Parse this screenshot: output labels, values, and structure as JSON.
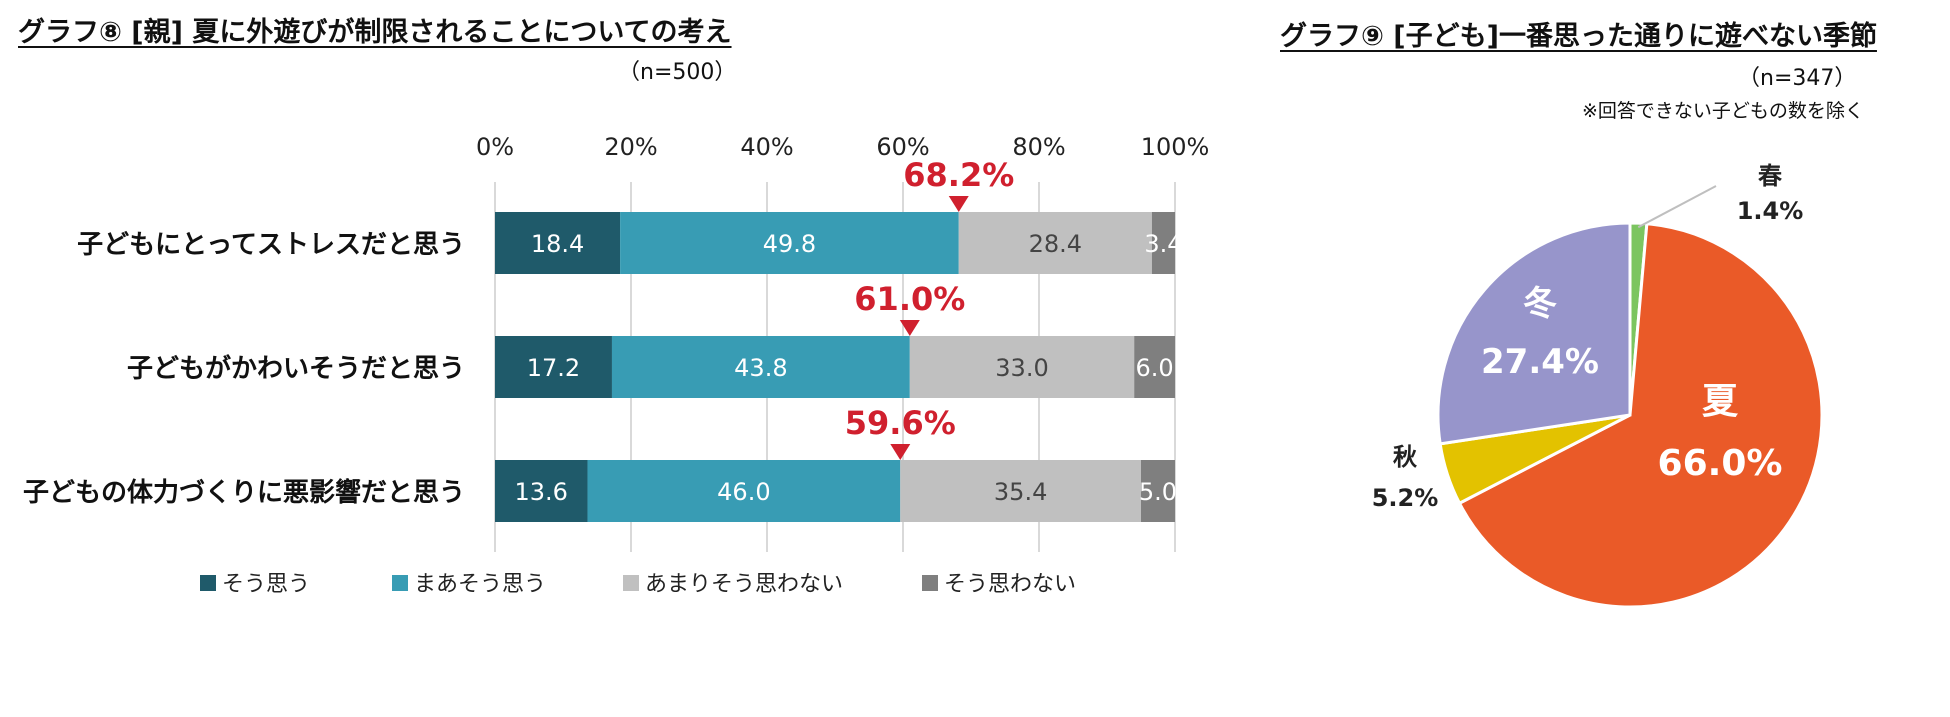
{
  "chart8": {
    "title": "グラフ⑧ [親] 夏に外遊びが制限されることについての考え",
    "sample": "（n=500）"
  },
  "chart9": {
    "title": "グラフ⑨ [子ども]一番思った通りに遊べない季節",
    "sample": "（n=347）",
    "note": "※回答できない子どもの数を除く"
  },
  "chart_data": [
    {
      "type": "bar",
      "orientation": "horizontal",
      "stacked": true,
      "title": "グラフ⑧ [親] 夏に外遊びが制限されることについての考え",
      "categories": [
        "子どもにとってストレスだと思う",
        "子どもがかわいそうだと思う",
        "子どもの体力づくりに悪影響だと思う"
      ],
      "series": [
        {
          "name": "そう思う",
          "color": "#1f5a6a",
          "values": [
            18.4,
            17.2,
            13.6
          ]
        },
        {
          "name": "まあそう思う",
          "color": "#389cb4",
          "values": [
            49.8,
            43.8,
            46.0
          ]
        },
        {
          "name": "あまりそう思わない",
          "color": "#c0c0c0",
          "values": [
            28.4,
            33.0,
            35.4
          ]
        },
        {
          "name": "そう思わない",
          "color": "#7f7f7f",
          "values": [
            3.4,
            6.0,
            5.0
          ]
        }
      ],
      "value_labels": [
        "18.4",
        "49.8",
        "28.4",
        "3.4",
        "17.2",
        "43.8",
        "33.0",
        "6.0",
        "13.6",
        "46.0",
        "35.4",
        "5.0"
      ],
      "annotations": [
        "68.2%",
        "61.0%",
        "59.6%"
      ],
      "annotation_values": [
        68.2,
        61.0,
        59.6
      ],
      "annotation_color": "#d0202e",
      "xlim": [
        0,
        100
      ],
      "ticks": [
        "0%",
        "20%",
        "40%",
        "60%",
        "80%",
        "100%"
      ],
      "legend": "bottom"
    },
    {
      "type": "pie",
      "title": "グラフ⑨ [子ども]一番思った通りに遊べない季節",
      "slices": [
        {
          "label": "春",
          "value": 1.4,
          "text": "1.4%",
          "color": "#7cc560"
        },
        {
          "label": "夏",
          "value": 66.0,
          "text": "66.0%",
          "color": "#ea5a28"
        },
        {
          "label": "秋",
          "value": 5.2,
          "text": "5.2%",
          "color": "#e3c200"
        },
        {
          "label": "冬",
          "value": 27.4,
          "text": "27.4%",
          "color": "#9795cb"
        }
      ]
    }
  ]
}
